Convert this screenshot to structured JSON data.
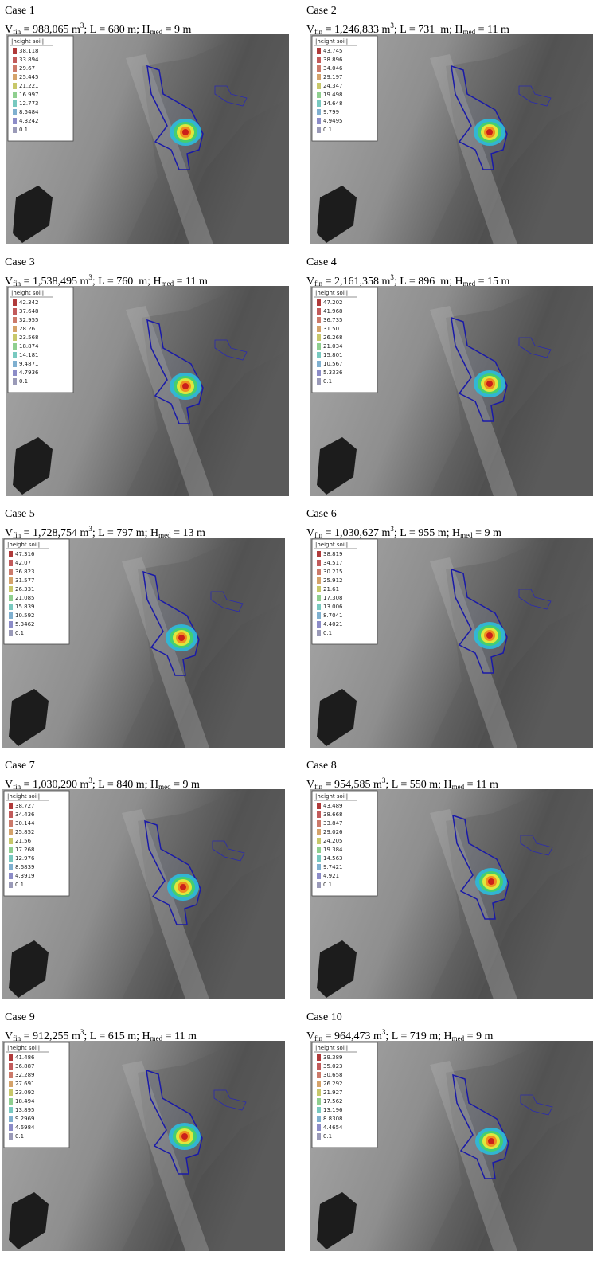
{
  "panels": [
    {
      "label": "Case 1",
      "caption": [
        "V",
        "fin",
        " = 988,065 m",
        "3",
        "; L = 680 m; H",
        "med",
        " = 9 m"
      ],
      "legend": {
        "title": "|height soil|",
        "values": [
          "38.118",
          "33.894",
          "29.67",
          "25.445",
          "21.221",
          "16.997",
          "12.773",
          "8.5484",
          "4.3242",
          "0.1"
        ]
      }
    },
    {
      "label": "Case 2",
      "caption": [
        "V",
        "fin",
        " = 1,246,833 m",
        "3",
        "; L = 731  m; H",
        "med",
        " = 11 m"
      ],
      "legend": {
        "title": "|height soil|",
        "values": [
          "43.745",
          "38.896",
          "34.046",
          "29.197",
          "24.347",
          "19.498",
          "14.648",
          "9.799",
          "4.9495",
          "0.1"
        ]
      }
    },
    {
      "label": "Case 3",
      "caption": [
        "V",
        "fin",
        " = 1,538,495 m",
        "3",
        "; L = 760  m; H",
        "med",
        " = 11 m"
      ],
      "legend": {
        "title": "|height soil|",
        "values": [
          "42.342",
          "37.648",
          "32.955",
          "28.261",
          "23.568",
          "18.874",
          "14.181",
          "9.4871",
          "4.7936",
          "0.1"
        ]
      }
    },
    {
      "label": "Case 4",
      "caption": [
        "V",
        "fin",
        " = 2,161,358 m",
        "3",
        "; L = 896  m; H",
        "med",
        " = 15 m"
      ],
      "legend": {
        "title": "|height soil|",
        "values": [
          "47.202",
          "41.968",
          "36.735",
          "31.501",
          "26.268",
          "21.034",
          "15.801",
          "10.567",
          "5.3336",
          "0.1"
        ]
      }
    },
    {
      "label": "Case 5",
      "caption": [
        "V",
        "fin",
        " = 1,728,754 m",
        "3",
        "; L = 797 m; H",
        "med",
        " = 13 m"
      ],
      "legend": {
        "title": "|height soil|",
        "values": [
          "47.316",
          "42.07",
          "36.823",
          "31.577",
          "26.331",
          "21.085",
          "15.839",
          "10.592",
          "5.3462",
          "0.1"
        ]
      }
    },
    {
      "label": "Case 6",
      "caption": [
        "V",
        "fin",
        " = 1,030,627 m",
        "3",
        "; L = 955 m; H",
        "med",
        " = 9 m"
      ],
      "legend": {
        "title": "|height soil|",
        "values": [
          "38.819",
          "34.517",
          "30.215",
          "25.912",
          "21.61",
          "17.308",
          "13.006",
          "8.7041",
          "4.4021",
          "0.1"
        ]
      }
    },
    {
      "label": "Case 7",
      "caption": [
        "V",
        "fin",
        " = 1,030,290 m",
        "3",
        "; L = 840 m; H",
        "med",
        " = 9 m"
      ],
      "legend": {
        "title": "|height soil|",
        "values": [
          "38.727",
          "34.436",
          "30.144",
          "25.852",
          "21.56",
          "17.268",
          "12.976",
          "8.6839",
          "4.3919",
          "0.1"
        ]
      }
    },
    {
      "label": "Case 8",
      "caption": [
        "V",
        "fin",
        " = 954,585 m",
        "3",
        "; L = 550 m; H",
        "med",
        " = 11 m"
      ],
      "legend": {
        "title": "|height soil|",
        "values": [
          "43.489",
          "38.668",
          "33.847",
          "29.026",
          "24.205",
          "19.384",
          "14.563",
          "9.7421",
          "4.921",
          "0.1"
        ]
      }
    },
    {
      "label": "Case 9",
      "caption": [
        "V",
        "fin",
        " = 912,255 m",
        "3",
        "; L = 615 m; H",
        "med",
        " = 11 m"
      ],
      "legend": {
        "title": "|height soil|",
        "values": [
          "41.486",
          "36.887",
          "32.289",
          "27.691",
          "23.092",
          "18.494",
          "13.895",
          "9.2969",
          "4.6984",
          "0.1"
        ]
      }
    },
    {
      "label": "Case 10",
      "caption": [
        "V",
        "fin",
        " = 964,473 m",
        "3",
        "; L = 719 m; H",
        "med",
        " = 9 m"
      ],
      "legend": {
        "title": "|height soil|",
        "values": [
          "39.389",
          "35.023",
          "30.658",
          "26.292",
          "21.927",
          "17.562",
          "13.196",
          "8.8308",
          "4.4654",
          "0.1"
        ]
      }
    }
  ]
}
